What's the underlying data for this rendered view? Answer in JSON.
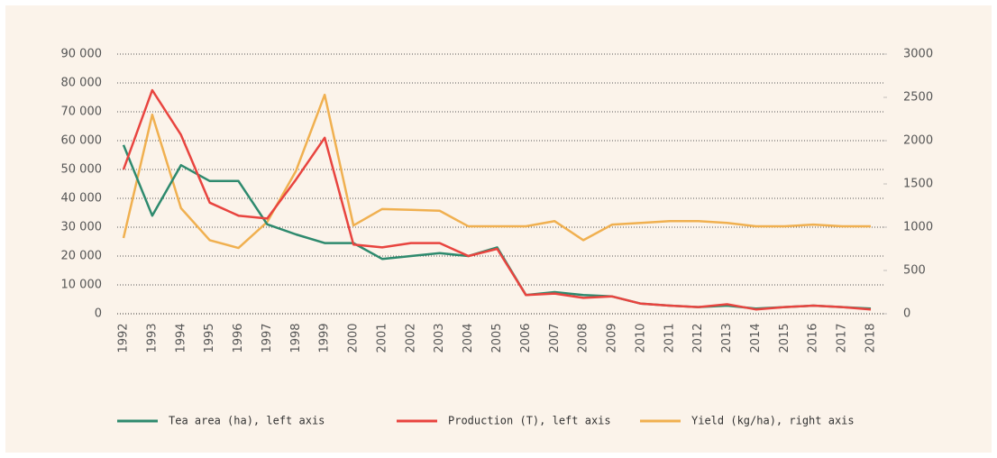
{
  "chart_data": {
    "type": "line",
    "categories": [
      "1992",
      "1993",
      "1994",
      "1995",
      "1996",
      "1997",
      "1998",
      "1999",
      "2000",
      "2001",
      "2002",
      "2003",
      "2004",
      "2005",
      "2006",
      "2007",
      "2008",
      "2009",
      "2010",
      "2011",
      "2012",
      "2013",
      "2014",
      "2015",
      "2016",
      "2017",
      "2018"
    ],
    "series": [
      {
        "name": "Tea area (ha), left axis",
        "color": "#2e8a6e",
        "axis": "y",
        "values": [
          58500,
          34000,
          51500,
          46000,
          46000,
          31000,
          27500,
          24500,
          24500,
          19000,
          20000,
          21000,
          20000,
          23000,
          6500,
          7500,
          6500,
          6000,
          3500,
          2800,
          2300,
          2800,
          1800,
          2300,
          2800,
          2300,
          1800
        ]
      },
      {
        "name": "Production (T), left axis",
        "color": "#e8443f",
        "axis": "y",
        "values": [
          50000,
          77500,
          62000,
          38500,
          34000,
          33000,
          46500,
          61000,
          24000,
          23000,
          24500,
          24500,
          20000,
          22500,
          6500,
          7000,
          5500,
          6000,
          3500,
          2800,
          2300,
          3300,
          1500,
          2300,
          2800,
          2300,
          1500
        ]
      },
      {
        "name": "Yield (kg/ha), right axis",
        "color": "#f0b050",
        "axis": "y2",
        "values": [
          875,
          2300,
          1220,
          850,
          760,
          1060,
          1650,
          2530,
          1020,
          1210,
          1200,
          1190,
          1010,
          1010,
          1010,
          1070,
          850,
          1030,
          1050,
          1070,
          1070,
          1050,
          1010,
          1010,
          1030,
          1010,
          1010
        ]
      }
    ],
    "ylim": [
      0,
      90000
    ],
    "yticks": [
      0,
      {
        "value": 10000,
        "label": "10 000"
      },
      {
        "value": 20000,
        "label": "20 000"
      },
      {
        "value": 30000,
        "label": "30 000"
      },
      {
        "value": 40000,
        "label": "40 000"
      },
      {
        "value": 50000,
        "label": "50 000"
      },
      {
        "value": 60000,
        "label": "60 000"
      },
      {
        "value": 70000,
        "label": "70 000"
      },
      {
        "value": 80000,
        "label": "80 000"
      },
      {
        "value": 90000,
        "label": "90 000"
      }
    ],
    "y2lim": [
      0,
      3000
    ],
    "y2ticks": [
      0,
      500,
      1000,
      1500,
      2000,
      2500,
      3000
    ],
    "grid": true,
    "legend": "bottom"
  }
}
